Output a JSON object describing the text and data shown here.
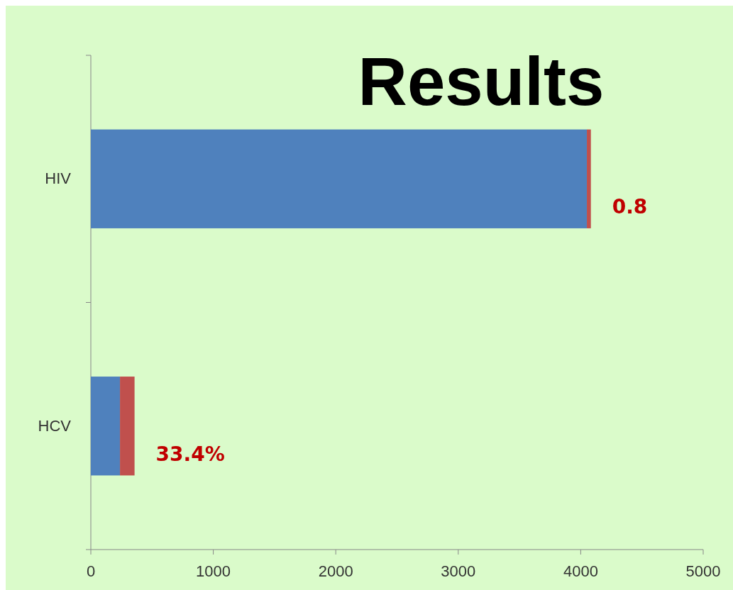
{
  "chart_data": {
    "type": "bar",
    "orientation": "horizontal",
    "stacked": true,
    "title": "Results",
    "categories": [
      "HIV",
      "HCV"
    ],
    "series": [
      {
        "color": "#4f81bd",
        "values": [
          4050,
          238
        ]
      },
      {
        "color": "#c0504d",
        "values": [
          33,
          119
        ]
      }
    ],
    "annotations": [
      {
        "text": "0.8",
        "x": 4083,
        "y": "HIV"
      },
      {
        "text": "33.4%",
        "x": 357,
        "y": "HCV"
      }
    ],
    "xlim": [
      0,
      5000
    ],
    "xticks": [
      0,
      1000,
      2000,
      3000,
      4000,
      5000
    ]
  }
}
